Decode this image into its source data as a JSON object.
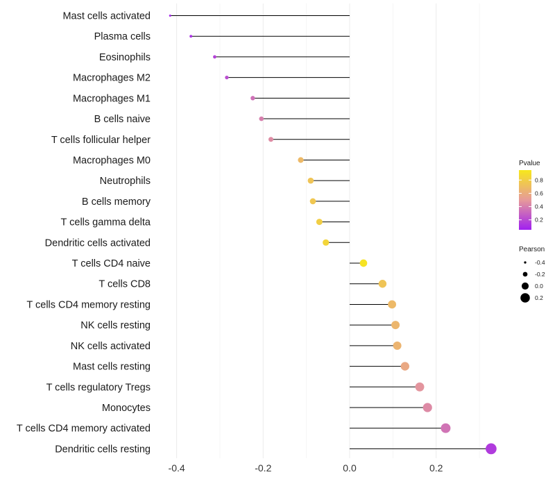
{
  "chart_data": {
    "type": "lollipop",
    "title": "",
    "xlabel": "",
    "ylabel": "",
    "xlim": [
      -0.44,
      0.34
    ],
    "x_ticks": [
      -0.4,
      -0.2,
      0.0,
      0.2
    ],
    "x_tick_labels": [
      "-0.4",
      "-0.2",
      "0.0",
      "0.2"
    ],
    "grid": true,
    "legend_placement": "right",
    "categories": [
      "Mast cells activated",
      "Plasma cells",
      "Eosinophils",
      "Macrophages M2",
      "Macrophages M1",
      "B cells naive",
      "T cells follicular helper",
      "Macrophages M0",
      "Neutrophils",
      "B cells memory",
      "T cells gamma delta",
      "Dendritic cells activated",
      "T cells CD4 naive",
      "T cells CD8",
      "T cells CD4 memory resting",
      "NK cells resting",
      "NK cells activated",
      "Mast cells resting",
      "T cells regulatory  Tregs ",
      "Monocytes",
      "T cells CD4 memory activated",
      "Dendritic cells resting"
    ],
    "pearson": [
      -0.415,
      -0.367,
      -0.312,
      -0.284,
      -0.224,
      -0.204,
      -0.182,
      -0.113,
      -0.09,
      -0.085,
      -0.07,
      -0.055,
      0.032,
      0.076,
      0.098,
      0.106,
      0.11,
      0.128,
      0.162,
      0.18,
      0.222,
      0.327
    ],
    "pvalue": [
      0.08,
      0.12,
      0.18,
      0.22,
      0.35,
      0.4,
      0.45,
      0.68,
      0.74,
      0.76,
      0.8,
      0.84,
      0.92,
      0.74,
      0.68,
      0.66,
      0.65,
      0.58,
      0.48,
      0.44,
      0.36,
      0.15
    ],
    "legend_color": {
      "title": "Pvalue",
      "ticks": [
        0.8,
        0.6,
        0.4,
        0.2
      ],
      "tick_labels": [
        "0.8",
        "0.6",
        "0.4",
        "0.2"
      ],
      "range": [
        0.05,
        0.95
      ],
      "colors": [
        "#a020f0",
        "#f7e81b"
      ]
    },
    "legend_size": {
      "title": "Pearson",
      "values": [
        -0.4,
        -0.2,
        0.0,
        0.2
      ],
      "labels": [
        "-0.4",
        "-0.2",
        "0.0",
        "0.2"
      ]
    }
  }
}
